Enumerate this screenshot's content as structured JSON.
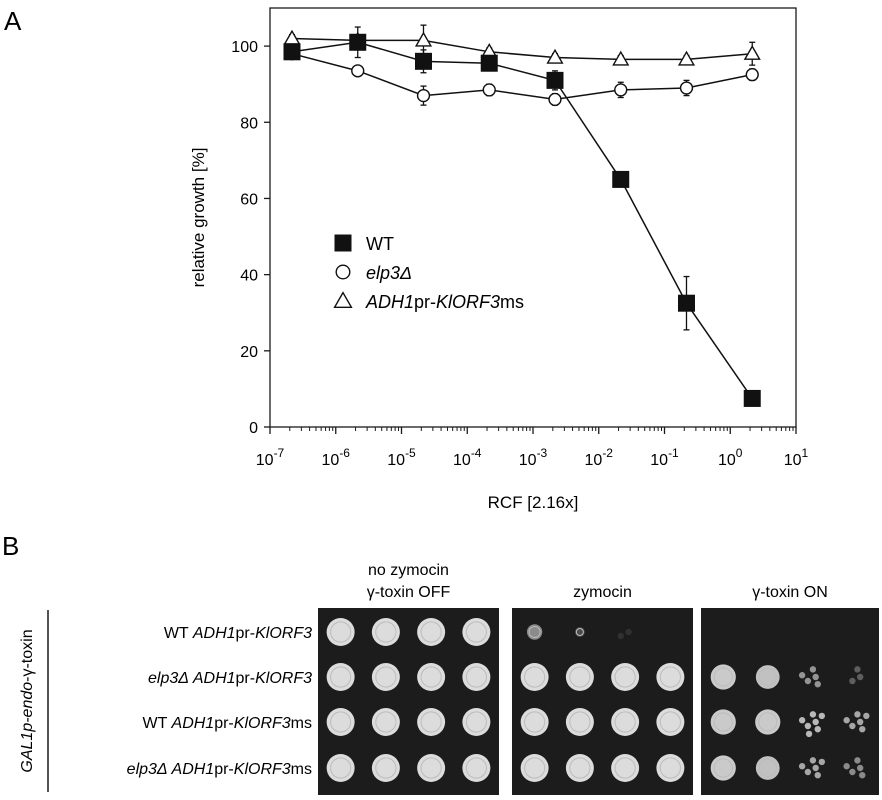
{
  "panel_a": {
    "label": "A",
    "chart_data": {
      "type": "line",
      "xscale": "log",
      "xlabel": "RCF [2.16x]",
      "ylabel": "relative growth [%]",
      "xlim": [
        1e-07,
        10
      ],
      "ylim": [
        0,
        110
      ],
      "xticks": [
        {
          "base": "10",
          "exp": "-7"
        },
        {
          "base": "10",
          "exp": "-6"
        },
        {
          "base": "10",
          "exp": "-5"
        },
        {
          "base": "10",
          "exp": "-4"
        },
        {
          "base": "10",
          "exp": "-3"
        },
        {
          "base": "10",
          "exp": "-2"
        },
        {
          "base": "10",
          "exp": "-1"
        },
        {
          "base": "10",
          "exp": "0"
        },
        {
          "base": "10",
          "exp": "1"
        }
      ],
      "yticks": [
        "0",
        "20",
        "40",
        "60",
        "80",
        "100"
      ],
      "x": [
        2.16e-07,
        2.16e-06,
        2.16e-05,
        0.000216,
        0.00216,
        0.0216,
        0.216,
        2.16
      ],
      "series": [
        {
          "legend": [
            {
              "t": "WT",
              "i": false
            }
          ],
          "marker": "filled-square",
          "values": [
            98.5,
            101,
            96,
            95.5,
            91,
            65,
            32.5,
            7.5
          ],
          "errors": [
            1.5,
            4,
            3,
            2,
            2.5,
            1.5,
            7,
            1
          ]
        },
        {
          "legend": [
            {
              "t": "elp3Δ",
              "i": true
            }
          ],
          "marker": "open-circle",
          "values": [
            98,
            93.5,
            87,
            88.5,
            86,
            88.5,
            89,
            92.5
          ],
          "errors": [
            1,
            1,
            2.5,
            1.5,
            1.5,
            2,
            2,
            1.5
          ]
        },
        {
          "legend": [
            {
              "t": "ADH1",
              "i": true
            },
            {
              "t": "pr-",
              "i": false
            },
            {
              "t": "KlORF3",
              "i": true
            },
            {
              "t": "ms",
              "i": false
            }
          ],
          "marker": "open-triangle",
          "values": [
            102,
            101.5,
            101.5,
            98.5,
            97,
            96.5,
            96.5,
            98
          ],
          "errors": [
            1,
            1.5,
            4,
            1,
            1,
            1,
            1,
            3
          ]
        }
      ]
    }
  },
  "panel_b": {
    "label": "B",
    "side_label": [
      {
        "t": "GAL1p-endo",
        "i": true
      },
      {
        "t": "-γ-toxin",
        "i": false
      }
    ],
    "conditions": [
      {
        "lines": [
          "no zymocin",
          "γ-toxin OFF"
        ]
      },
      {
        "lines": [
          "zymocin"
        ]
      },
      {
        "lines": [
          "γ-toxin ON"
        ]
      }
    ],
    "strains": [
      [
        {
          "t": "WT ",
          "i": false
        },
        {
          "t": "ADH1",
          "i": true
        },
        {
          "t": "pr-",
          "i": false
        },
        {
          "t": "KlORF3",
          "i": true
        }
      ],
      [
        {
          "t": "elp3Δ ",
          "i": true
        },
        {
          "t": "ADH1",
          "i": true
        },
        {
          "t": "pr-",
          "i": false
        },
        {
          "t": "KlORF3",
          "i": true
        }
      ],
      [
        {
          "t": "WT ",
          "i": false
        },
        {
          "t": "ADH1",
          "i": true
        },
        {
          "t": "pr-",
          "i": false
        },
        {
          "t": "KlORF3",
          "i": true
        },
        {
          "t": "ms",
          "i": false
        }
      ],
      [
        {
          "t": "elp3Δ ",
          "i": true
        },
        {
          "t": "ADH1",
          "i": true
        },
        {
          "t": "pr-",
          "i": false
        },
        {
          "t": "KlORF3",
          "i": true
        },
        {
          "t": "ms",
          "i": false
        }
      ]
    ],
    "dilution_spots_per_row": 4,
    "growth_levels": [
      [
        [
          1.0,
          1.0,
          1.0,
          1.0
        ],
        [
          1.0,
          1.0,
          1.0,
          1.0
        ],
        [
          1.0,
          1.0,
          1.0,
          1.0
        ],
        [
          1.0,
          1.0,
          1.0,
          1.0
        ]
      ],
      [
        [
          0.55,
          0.2,
          0.05,
          0.0
        ],
        [
          1.0,
          1.0,
          1.0,
          1.0
        ],
        [
          1.0,
          1.0,
          1.0,
          1.0
        ],
        [
          1.0,
          1.0,
          1.0,
          1.0
        ]
      ],
      [
        [
          0.0,
          0.0,
          0.0,
          0.0
        ],
        [
          0.9,
          0.85,
          0.6,
          0.3
        ],
        [
          0.9,
          0.9,
          0.8,
          0.7
        ],
        [
          0.9,
          0.85,
          0.7,
          0.55
        ]
      ]
    ],
    "colors": {
      "plate_bg": "#1c1c1c",
      "colony": "#e2e2e2",
      "ink": "#1a1a1a"
    }
  }
}
